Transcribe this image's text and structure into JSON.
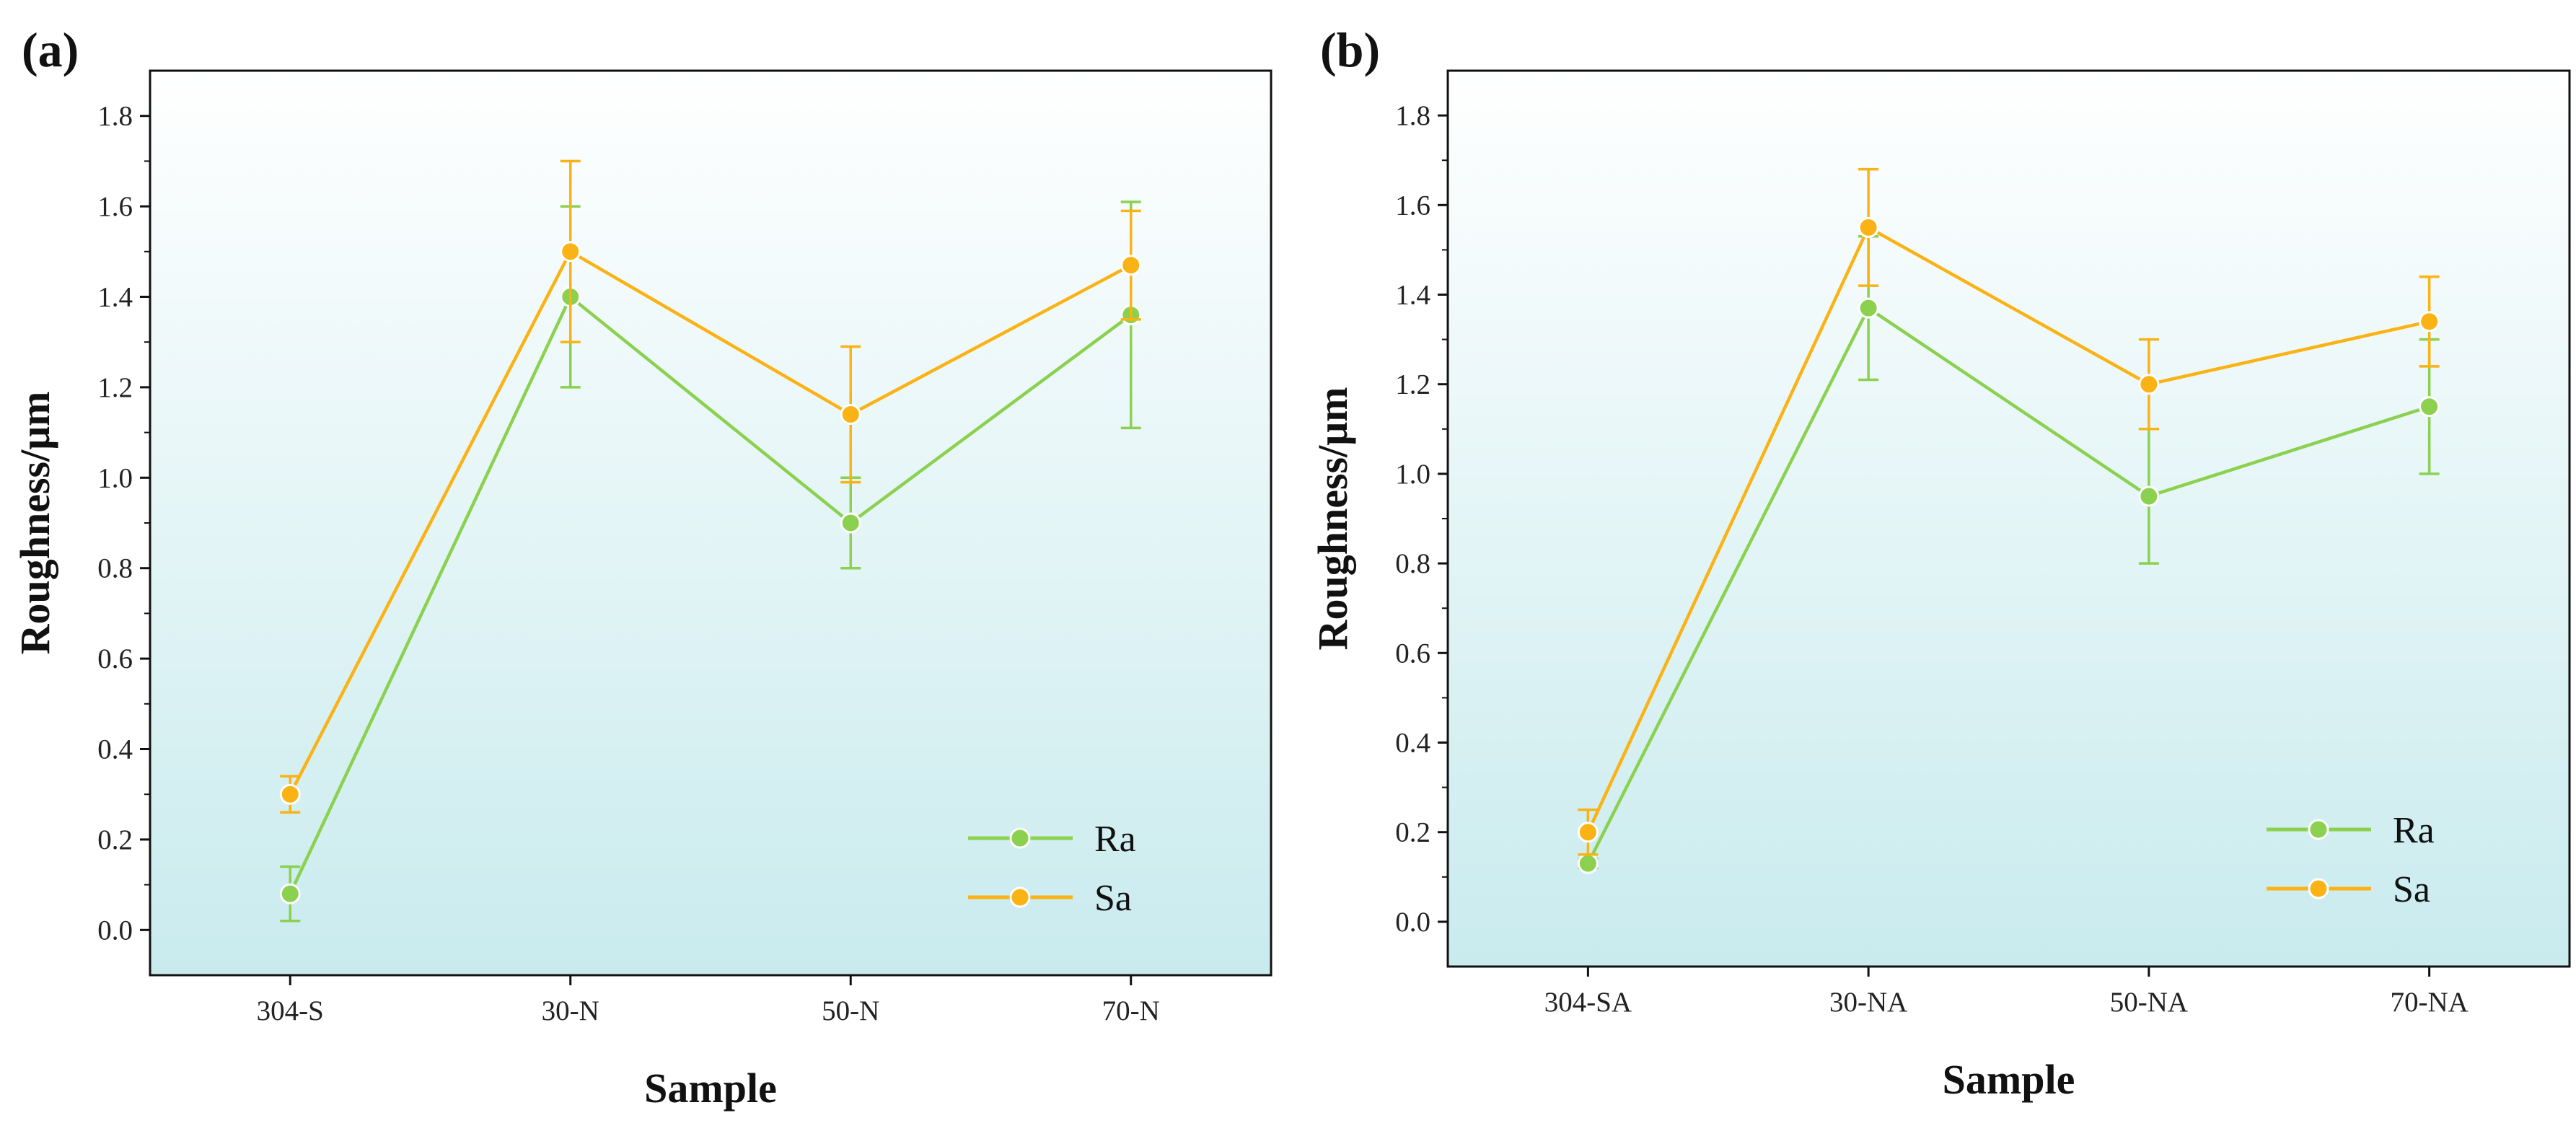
{
  "colors": {
    "ra": "#8bd14f",
    "sa": "#fbb214",
    "bg_top": "#ffffff",
    "bg_bottom": "#c9ebee",
    "axis": "#111111"
  },
  "chart_data": [
    {
      "type": "line",
      "panel_label": "(a)",
      "title": "",
      "xlabel": "Sample",
      "ylabel": "Roughness/μm",
      "categories": [
        "304-S",
        "30-N",
        "50-N",
        "70-N"
      ],
      "ylim": [
        -0.1,
        1.9
      ],
      "yticks": [
        "0.0",
        "0.2",
        "0.4",
        "0.6",
        "0.8",
        "1.0",
        "1.2",
        "1.4",
        "1.6",
        "1.8"
      ],
      "legend_position": "bottom-right",
      "series": [
        {
          "name": "Ra",
          "values": [
            0.08,
            1.4,
            0.9,
            1.36
          ],
          "errors": [
            0.06,
            0.2,
            0.1,
            0.25
          ]
        },
        {
          "name": "Sa",
          "values": [
            0.3,
            1.5,
            1.14,
            1.47
          ],
          "errors": [
            0.04,
            0.2,
            0.15,
            0.12
          ]
        }
      ]
    },
    {
      "type": "line",
      "panel_label": "(b)",
      "title": "",
      "xlabel": "Sample",
      "ylabel": "Roughness/μm",
      "categories": [
        "304-SA",
        "30-NA",
        "50-NA",
        "70-NA"
      ],
      "ylim": [
        -0.1,
        1.9
      ],
      "yticks": [
        "0.0",
        "0.2",
        "0.4",
        "0.6",
        "0.8",
        "1.0",
        "1.2",
        "1.4",
        "1.6",
        "1.8"
      ],
      "legend_position": "bottom-right",
      "series": [
        {
          "name": "Ra",
          "values": [
            0.13,
            1.37,
            0.95,
            1.15
          ],
          "errors": [
            0.01,
            0.16,
            0.15,
            0.15
          ]
        },
        {
          "name": "Sa",
          "values": [
            0.2,
            1.55,
            1.2,
            1.34
          ],
          "errors": [
            0.05,
            0.13,
            0.1,
            0.1
          ]
        }
      ]
    }
  ]
}
